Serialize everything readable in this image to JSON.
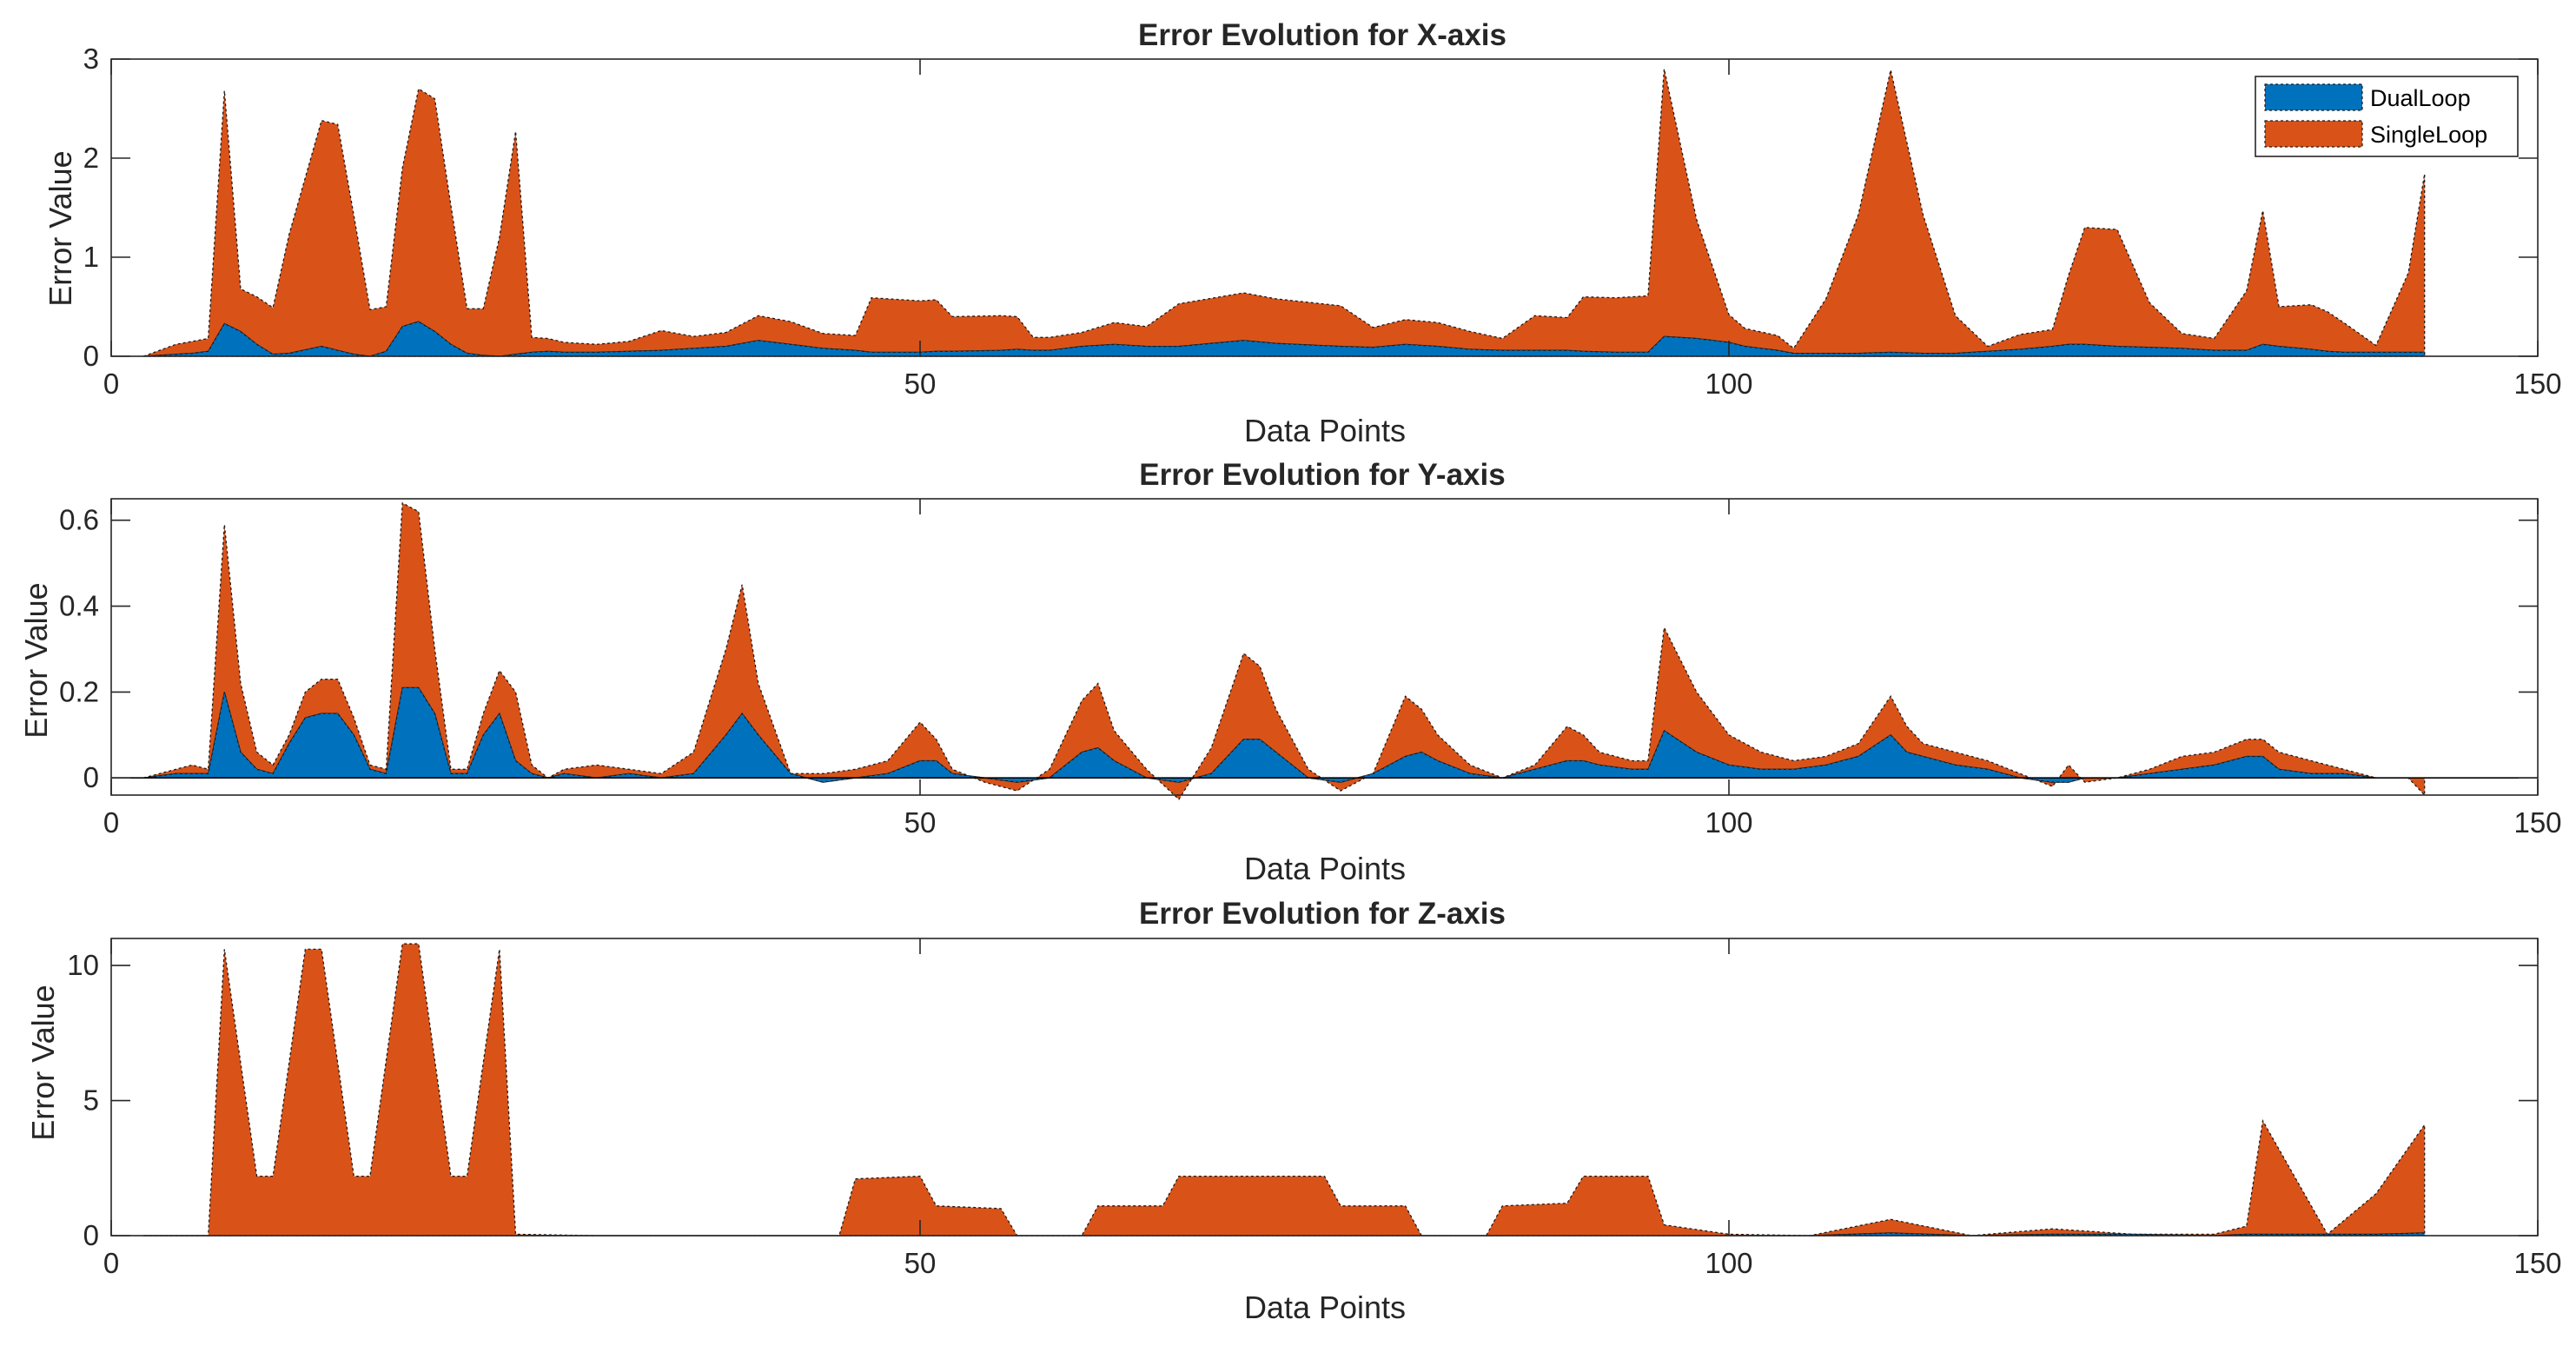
{
  "figure": {
    "colors": {
      "dual": "#0072BD",
      "single": "#D95319",
      "axis": "#262626",
      "edge": "#1a1a1a"
    },
    "legend": {
      "placement": "top-right",
      "entries": [
        "DualLoop",
        "SingleLoop"
      ]
    }
  },
  "chart_data": [
    {
      "type": "area",
      "title": "Error Evolution for X-axis",
      "xlabel": "Data Points",
      "ylabel": "Error Value",
      "xlim": [
        0,
        150
      ],
      "ylim": [
        0,
        3
      ],
      "xticks": [
        0,
        50,
        100,
        150
      ],
      "xtick_labels": [
        "0",
        "50",
        "100",
        "150"
      ],
      "yticks": [
        0,
        1,
        2,
        3
      ],
      "ytick_labels": [
        "0",
        "1",
        "2",
        "3"
      ],
      "stacked": true,
      "x": [
        2,
        4,
        5,
        6,
        7,
        8,
        9,
        10,
        11,
        13,
        14,
        15,
        16,
        17,
        18,
        19,
        20,
        21,
        22,
        23,
        24,
        25,
        26,
        27,
        28,
        30,
        32,
        34,
        36,
        38,
        40,
        42,
        44,
        46,
        47,
        50,
        51,
        52,
        55,
        56,
        57,
        58,
        60,
        62,
        64,
        66,
        70,
        72,
        76,
        78,
        80,
        82,
        84,
        86,
        88,
        90,
        91,
        93,
        95,
        96,
        98,
        100,
        101,
        103,
        104,
        106,
        108,
        110,
        112,
        114,
        116,
        118,
        120,
        121,
        122,
        124,
        126,
        128,
        130,
        132,
        133,
        134,
        136,
        137,
        138,
        140,
        142,
        143
      ],
      "series": [
        {
          "name": "DualLoop",
          "values": [
            0,
            0.02,
            0.03,
            0.05,
            0.33,
            0.25,
            0.12,
            0.02,
            0.03,
            0.1,
            0.06,
            0.02,
            0,
            0.05,
            0.3,
            0.35,
            0.25,
            0.12,
            0.03,
            0.01,
            0,
            0.02,
            0.04,
            0.05,
            0.04,
            0.04,
            0.05,
            0.06,
            0.08,
            0.1,
            0.16,
            0.12,
            0.08,
            0.06,
            0.04,
            0.04,
            0.05,
            0.05,
            0.06,
            0.07,
            0.06,
            0.06,
            0.1,
            0.12,
            0.1,
            0.1,
            0.16,
            0.13,
            0.1,
            0.09,
            0.12,
            0.1,
            0.07,
            0.06,
            0.06,
            0.06,
            0.05,
            0.04,
            0.04,
            0.2,
            0.18,
            0.14,
            0.1,
            0.06,
            0.03,
            0.03,
            0.03,
            0.04,
            0.03,
            0.03,
            0.05,
            0.07,
            0.1,
            0.12,
            0.12,
            0.1,
            0.09,
            0.08,
            0.06,
            0.06,
            0.12,
            0.1,
            0.07,
            0.05,
            0.04,
            0.04,
            0.04,
            0.04
          ]
        },
        {
          "name": "SingleLoop",
          "values": [
            0,
            0.1,
            0.12,
            0.13,
            2.35,
            0.43,
            0.48,
            0.47,
            1.2,
            2.28,
            2.28,
            1.4,
            0.47,
            0.45,
            1.6,
            2.35,
            2.35,
            1.4,
            0.45,
            0.47,
            1.2,
            2.25,
            0.15,
            0.13,
            0.1,
            0.08,
            0.1,
            0.2,
            0.12,
            0.14,
            0.25,
            0.23,
            0.15,
            0.15,
            0.55,
            0.52,
            0.52,
            0.35,
            0.35,
            0.33,
            0.13,
            0.13,
            0.14,
            0.22,
            0.2,
            0.43,
            0.48,
            0.45,
            0.41,
            0.2,
            0.25,
            0.24,
            0.18,
            0.12,
            0.35,
            0.33,
            0.55,
            0.55,
            0.57,
            2.7,
            1.2,
            0.28,
            0.18,
            0.15,
            0.05,
            0.55,
            1.4,
            2.85,
            1.4,
            0.38,
            0.05,
            0.15,
            0.17,
            0.7,
            1.18,
            1.18,
            0.45,
            0.15,
            0.12,
            0.6,
            1.35,
            0.4,
            0.45,
            0.4,
            0.3,
            0.07,
            0.8,
            1.8
          ]
        }
      ]
    },
    {
      "type": "area",
      "title": "Error Evolution for Y-axis",
      "xlabel": "Data Points",
      "ylabel": "Error Value",
      "xlim": [
        0,
        150
      ],
      "ylim": [
        -0.04,
        0.65
      ],
      "xticks": [
        0,
        50,
        100,
        150
      ],
      "xtick_labels": [
        "0",
        "50",
        "100",
        "150"
      ],
      "yticks": [
        0,
        0.2,
        0.4,
        0.6
      ],
      "ytick_labels": [
        "0",
        "0.2",
        "0.4",
        "0.6"
      ],
      "stacked": true,
      "x": [
        2,
        4,
        5,
        6,
        7,
        8,
        9,
        10,
        11,
        12,
        13,
        14,
        15,
        16,
        17,
        18,
        19,
        20,
        21,
        22,
        23,
        24,
        25,
        26,
        27,
        28,
        30,
        32,
        34,
        36,
        38,
        39,
        40,
        42,
        44,
        46,
        48,
        50,
        51,
        52,
        54,
        56,
        58,
        60,
        61,
        62,
        64,
        66,
        68,
        70,
        71,
        72,
        74,
        76,
        78,
        80,
        81,
        82,
        84,
        86,
        88,
        90,
        91,
        92,
        94,
        95,
        96,
        98,
        100,
        102,
        104,
        106,
        108,
        110,
        111,
        112,
        114,
        116,
        118,
        120,
        121,
        122,
        124,
        126,
        128,
        130,
        132,
        133,
        134,
        136,
        138,
        140,
        142,
        143
      ],
      "series": [
        {
          "name": "DualLoop",
          "values": [
            0,
            0.01,
            0.01,
            0.01,
            0.2,
            0.06,
            0.02,
            0.01,
            0.08,
            0.14,
            0.15,
            0.15,
            0.1,
            0.02,
            0.01,
            0.21,
            0.21,
            0.15,
            0.01,
            0.01,
            0.1,
            0.15,
            0.04,
            0.01,
            0,
            0.01,
            0,
            0.01,
            0,
            0.01,
            0.1,
            0.15,
            0.1,
            0.01,
            -0.01,
            0,
            0.01,
            0.04,
            0.04,
            0.01,
            0,
            -0.01,
            0,
            0.06,
            0.07,
            0.04,
            0,
            -0.01,
            0.01,
            0.09,
            0.09,
            0.06,
            0,
            -0.01,
            0.01,
            0.05,
            0.06,
            0.04,
            0.01,
            0,
            0.02,
            0.04,
            0.04,
            0.03,
            0.02,
            0.02,
            0.11,
            0.06,
            0.03,
            0.02,
            0.02,
            0.03,
            0.05,
            0.1,
            0.06,
            0.05,
            0.03,
            0.02,
            0,
            -0.01,
            -0.01,
            0,
            0,
            0.01,
            0.02,
            0.03,
            0.05,
            0.05,
            0.02,
            0.01,
            0.01,
            0,
            0,
            0
          ]
        },
        {
          "name": "SingleLoop",
          "values": [
            0,
            0.01,
            0.02,
            0.01,
            0.39,
            0.16,
            0.04,
            0.02,
            0.02,
            0.06,
            0.08,
            0.08,
            0.04,
            0.01,
            0.01,
            0.43,
            0.41,
            0.15,
            0.01,
            0.01,
            0.05,
            0.1,
            0.16,
            0.02,
            0,
            0.01,
            0.03,
            0.01,
            0.01,
            0.05,
            0.2,
            0.3,
            0.12,
            0,
            0.02,
            0.02,
            0.03,
            0.09,
            0.05,
            0.01,
            -0.01,
            -0.02,
            0.02,
            0.12,
            0.15,
            0.07,
            0.02,
            -0.04,
            0.06,
            0.2,
            0.17,
            0.1,
            0.02,
            -0.02,
            0,
            0.14,
            0.1,
            0.06,
            0.02,
            0,
            0.01,
            0.08,
            0.06,
            0.03,
            0.02,
            0.02,
            0.24,
            0.14,
            0.07,
            0.04,
            0.02,
            0.02,
            0.03,
            0.09,
            0.06,
            0.03,
            0.03,
            0.02,
            0.01,
            -0.01,
            0.04,
            -0.01,
            0,
            0.01,
            0.03,
            0.03,
            0.04,
            0.04,
            0.04,
            0.03,
            0.01,
            0,
            0,
            -0.04
          ]
        }
      ]
    },
    {
      "type": "area",
      "title": "Error Evolution for Z-axis",
      "xlabel": "Data Points",
      "ylabel": "Error Value",
      "xlim": [
        0,
        150
      ],
      "ylim": [
        0,
        11
      ],
      "xticks": [
        0,
        50,
        100,
        150
      ],
      "xtick_labels": [
        "0",
        "50",
        "100",
        "150"
      ],
      "yticks": [
        0,
        5,
        10
      ],
      "ytick_labels": [
        "0",
        "5",
        "10"
      ],
      "stacked": true,
      "x": [
        2,
        6,
        7,
        9,
        10,
        12,
        13,
        15,
        16,
        18,
        19,
        21,
        22,
        24,
        25,
        30,
        40,
        45,
        46,
        50,
        51,
        55,
        56,
        60,
        61,
        65,
        66,
        70,
        75,
        76,
        80,
        81,
        85,
        86,
        90,
        91,
        95,
        96,
        100,
        105,
        110,
        115,
        120,
        125,
        130,
        132,
        133,
        137,
        140,
        143
      ],
      "series": [
        {
          "name": "DualLoop",
          "values": [
            0,
            0,
            0,
            0,
            0,
            0,
            0,
            0,
            0,
            0,
            0,
            0,
            0,
            0,
            0,
            0,
            0,
            0,
            0,
            0,
            0,
            0,
            0,
            0,
            0,
            0,
            0,
            0,
            0,
            0,
            0,
            0,
            0,
            0,
            0,
            0,
            0,
            0,
            0,
            0,
            0.1,
            0,
            0.05,
            0.05,
            0,
            0.05,
            0.05,
            0.05,
            0.05,
            0.1
          ]
        },
        {
          "name": "SingleLoop",
          "values": [
            0,
            0,
            10.6,
            2.2,
            2.2,
            10.6,
            10.6,
            2.2,
            2.2,
            10.8,
            10.8,
            2.2,
            2.2,
            10.6,
            0.05,
            0,
            0,
            0,
            2.1,
            2.2,
            1.1,
            1.0,
            0,
            0,
            1.1,
            1.1,
            2.2,
            2.2,
            2.2,
            1.1,
            1.1,
            0,
            0,
            1.1,
            1.2,
            2.2,
            2.2,
            0.4,
            0.05,
            0,
            0.5,
            0,
            0.2,
            0,
            0.05,
            0.3,
            4.2,
            0,
            1.5,
            4.0
          ]
        }
      ]
    }
  ]
}
